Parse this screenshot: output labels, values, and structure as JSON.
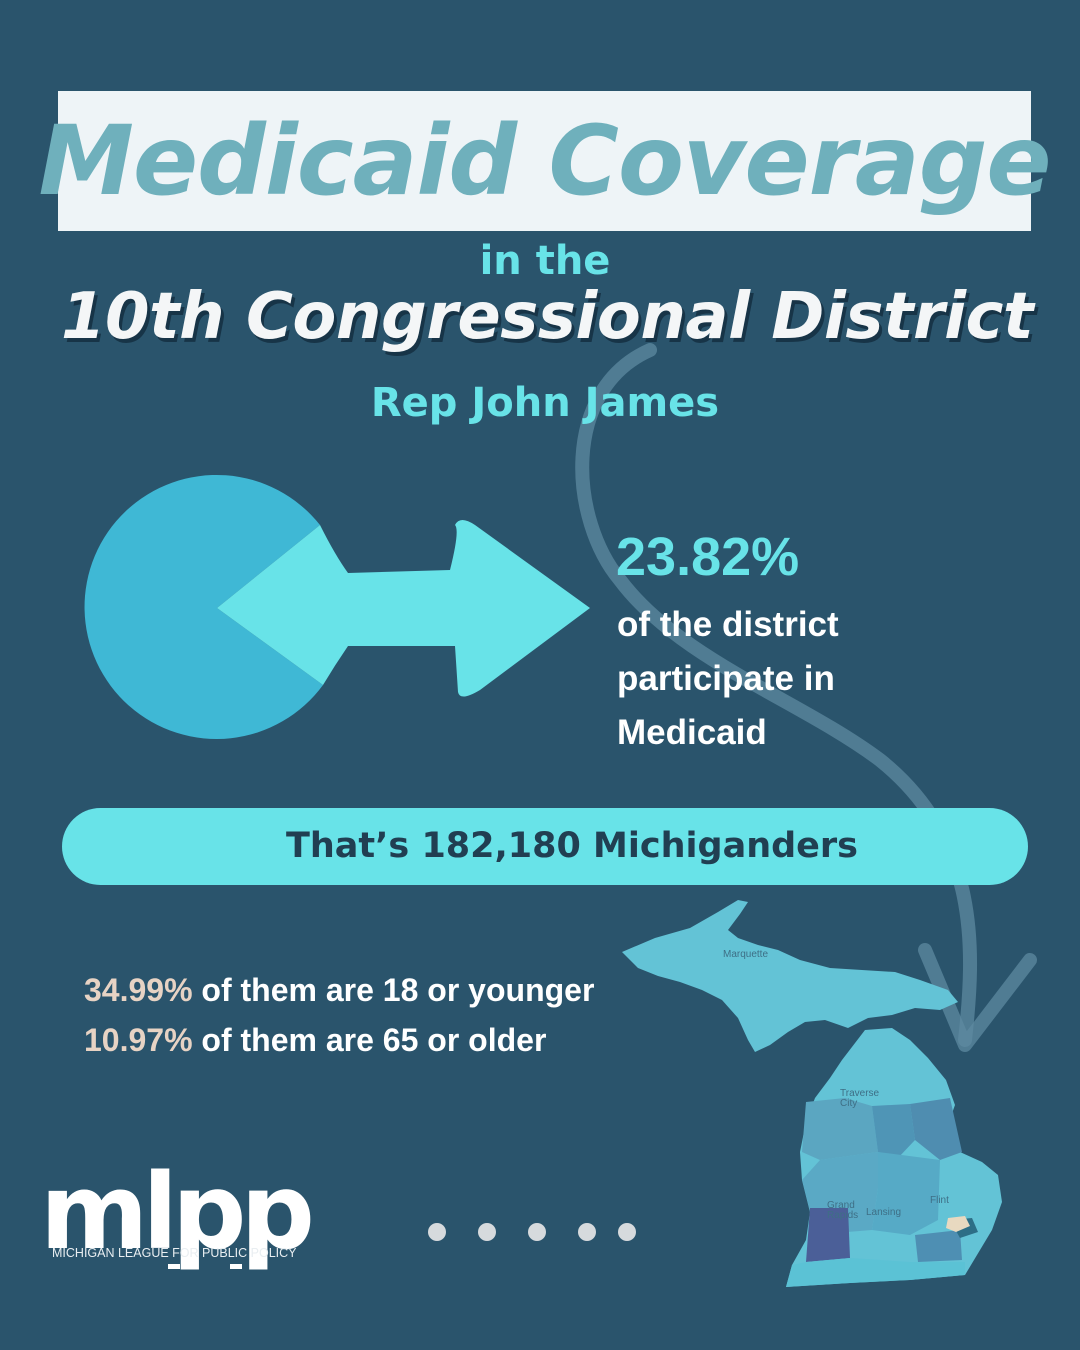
{
  "header": {
    "title": "Medicaid Coverage",
    "line_in_the": "in the",
    "district": "10th Congressional District",
    "rep": "Rep John James"
  },
  "stat_main": {
    "percent": "23.82%",
    "percent_value": 23.82,
    "desc_lines": [
      "of the district",
      "participate in",
      "Medicaid"
    ]
  },
  "banner": {
    "text": "That’s 182,180 Michiganders"
  },
  "breakdown": [
    {
      "value": "34.99%",
      "text": " of them are 18 or younger"
    },
    {
      "value": "10.97%",
      "text": " of them are 65 or older"
    }
  ],
  "map": {
    "labels": {
      "marquette": "Marquette",
      "traverse": "Traverse City",
      "flint": "Flint",
      "grand_rapids": "Grand Rapids",
      "lansing": "Lansing"
    }
  },
  "logo": {
    "wordmark": "mlpp",
    "subtitle": "MICHIGAN LEAGUE FOR PUBLIC POLICY"
  },
  "pagination": {
    "count": 5
  },
  "colors": {
    "background": "#2a546c",
    "accent_cyan": "#68e3e8",
    "title_teal": "#6fb0bc",
    "highlight_beige": "#e7d3c4",
    "pie_main": "#3fb8d5"
  }
}
